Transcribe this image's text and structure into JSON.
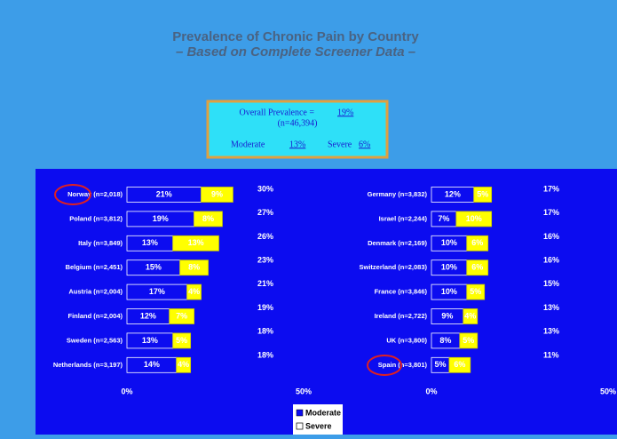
{
  "title": "Prevalence of Chronic Pain by Country",
  "subtitle": "– Based on Complete Screener Data –",
  "summary": {
    "overall_label": "Overall Prevalence =",
    "overall_value": "19%",
    "n": "(n=46,394)",
    "moderate_label": "Moderate",
    "moderate_value": "13%",
    "severe_label": "Severe",
    "severe_value": "6%"
  },
  "chart_data": [
    {
      "type": "bar",
      "orientation": "horizontal",
      "stacked": true,
      "categories": [
        "Norway (n=2,018)",
        "Poland (n=3,812)",
        "Italy (n=3,849)",
        "Belgium (n=2,451)",
        "Austria (n=2,004)",
        "Finland (n=2,004)",
        "Sweden (n=2,563)",
        "Netherlands (n=3,197)"
      ],
      "series": [
        {
          "name": "Moderate",
          "color": "#0c0cf0",
          "values": [
            21,
            19,
            13,
            15,
            17,
            12,
            13,
            14
          ],
          "value_labels": [
            "21%",
            "19%",
            "13%",
            "15%",
            "17%",
            "12%",
            "13%",
            "14%"
          ]
        },
        {
          "name": "Severe",
          "color": "#ffff00",
          "values": [
            9,
            8,
            13,
            8,
            4,
            7,
            5,
            4
          ],
          "value_labels": [
            "9%",
            "8%",
            "13%",
            "8%",
            "4%",
            "7%",
            "5%",
            "4%"
          ]
        }
      ],
      "totals": {
        "values": [
          30,
          27,
          26,
          23,
          21,
          19,
          18,
          18
        ],
        "value_labels": [
          "30%",
          "27%",
          "26%",
          "23%",
          "21%",
          "19%",
          "18%",
          "18%"
        ]
      },
      "xlim": [
        0,
        50
      ],
      "xticks": [
        {
          "value": 0,
          "label": "0%"
        },
        {
          "value": 50,
          "label": "50%"
        }
      ]
    },
    {
      "type": "bar",
      "orientation": "horizontal",
      "stacked": true,
      "categories": [
        "Germany (n=3,832)",
        "Israel (n=2,244)",
        "Denmark (n=2,169)",
        "Switzerland (n=2,083)",
        "France (n=3,846)",
        "Ireland (n=2,722)",
        "UK (n=3,800)",
        "Spain (n=3,801)"
      ],
      "series": [
        {
          "name": "Moderate",
          "color": "#0c0cf0",
          "values": [
            12,
            7,
            10,
            10,
            10,
            9,
            8,
            5
          ],
          "value_labels": [
            "12%",
            "7%",
            "10%",
            "10%",
            "10%",
            "9%",
            "8%",
            "5%"
          ]
        },
        {
          "name": "Severe",
          "color": "#ffff00",
          "values": [
            5,
            10,
            6,
            6,
            5,
            4,
            5,
            6
          ],
          "value_labels": [
            "5%",
            "10%",
            "6%",
            "6%",
            "5%",
            "4%",
            "5%",
            "6%"
          ]
        }
      ],
      "totals": {
        "values": [
          17,
          17,
          16,
          16,
          15,
          13,
          13,
          11
        ],
        "value_labels": [
          "17%",
          "17%",
          "16%",
          "16%",
          "15%",
          "13%",
          "13%",
          "11%"
        ]
      },
      "xlim": [
        0,
        50
      ],
      "xticks": [
        {
          "value": 0,
          "label": "0%"
        },
        {
          "value": 50,
          "label": "50%"
        }
      ]
    }
  ]
}
